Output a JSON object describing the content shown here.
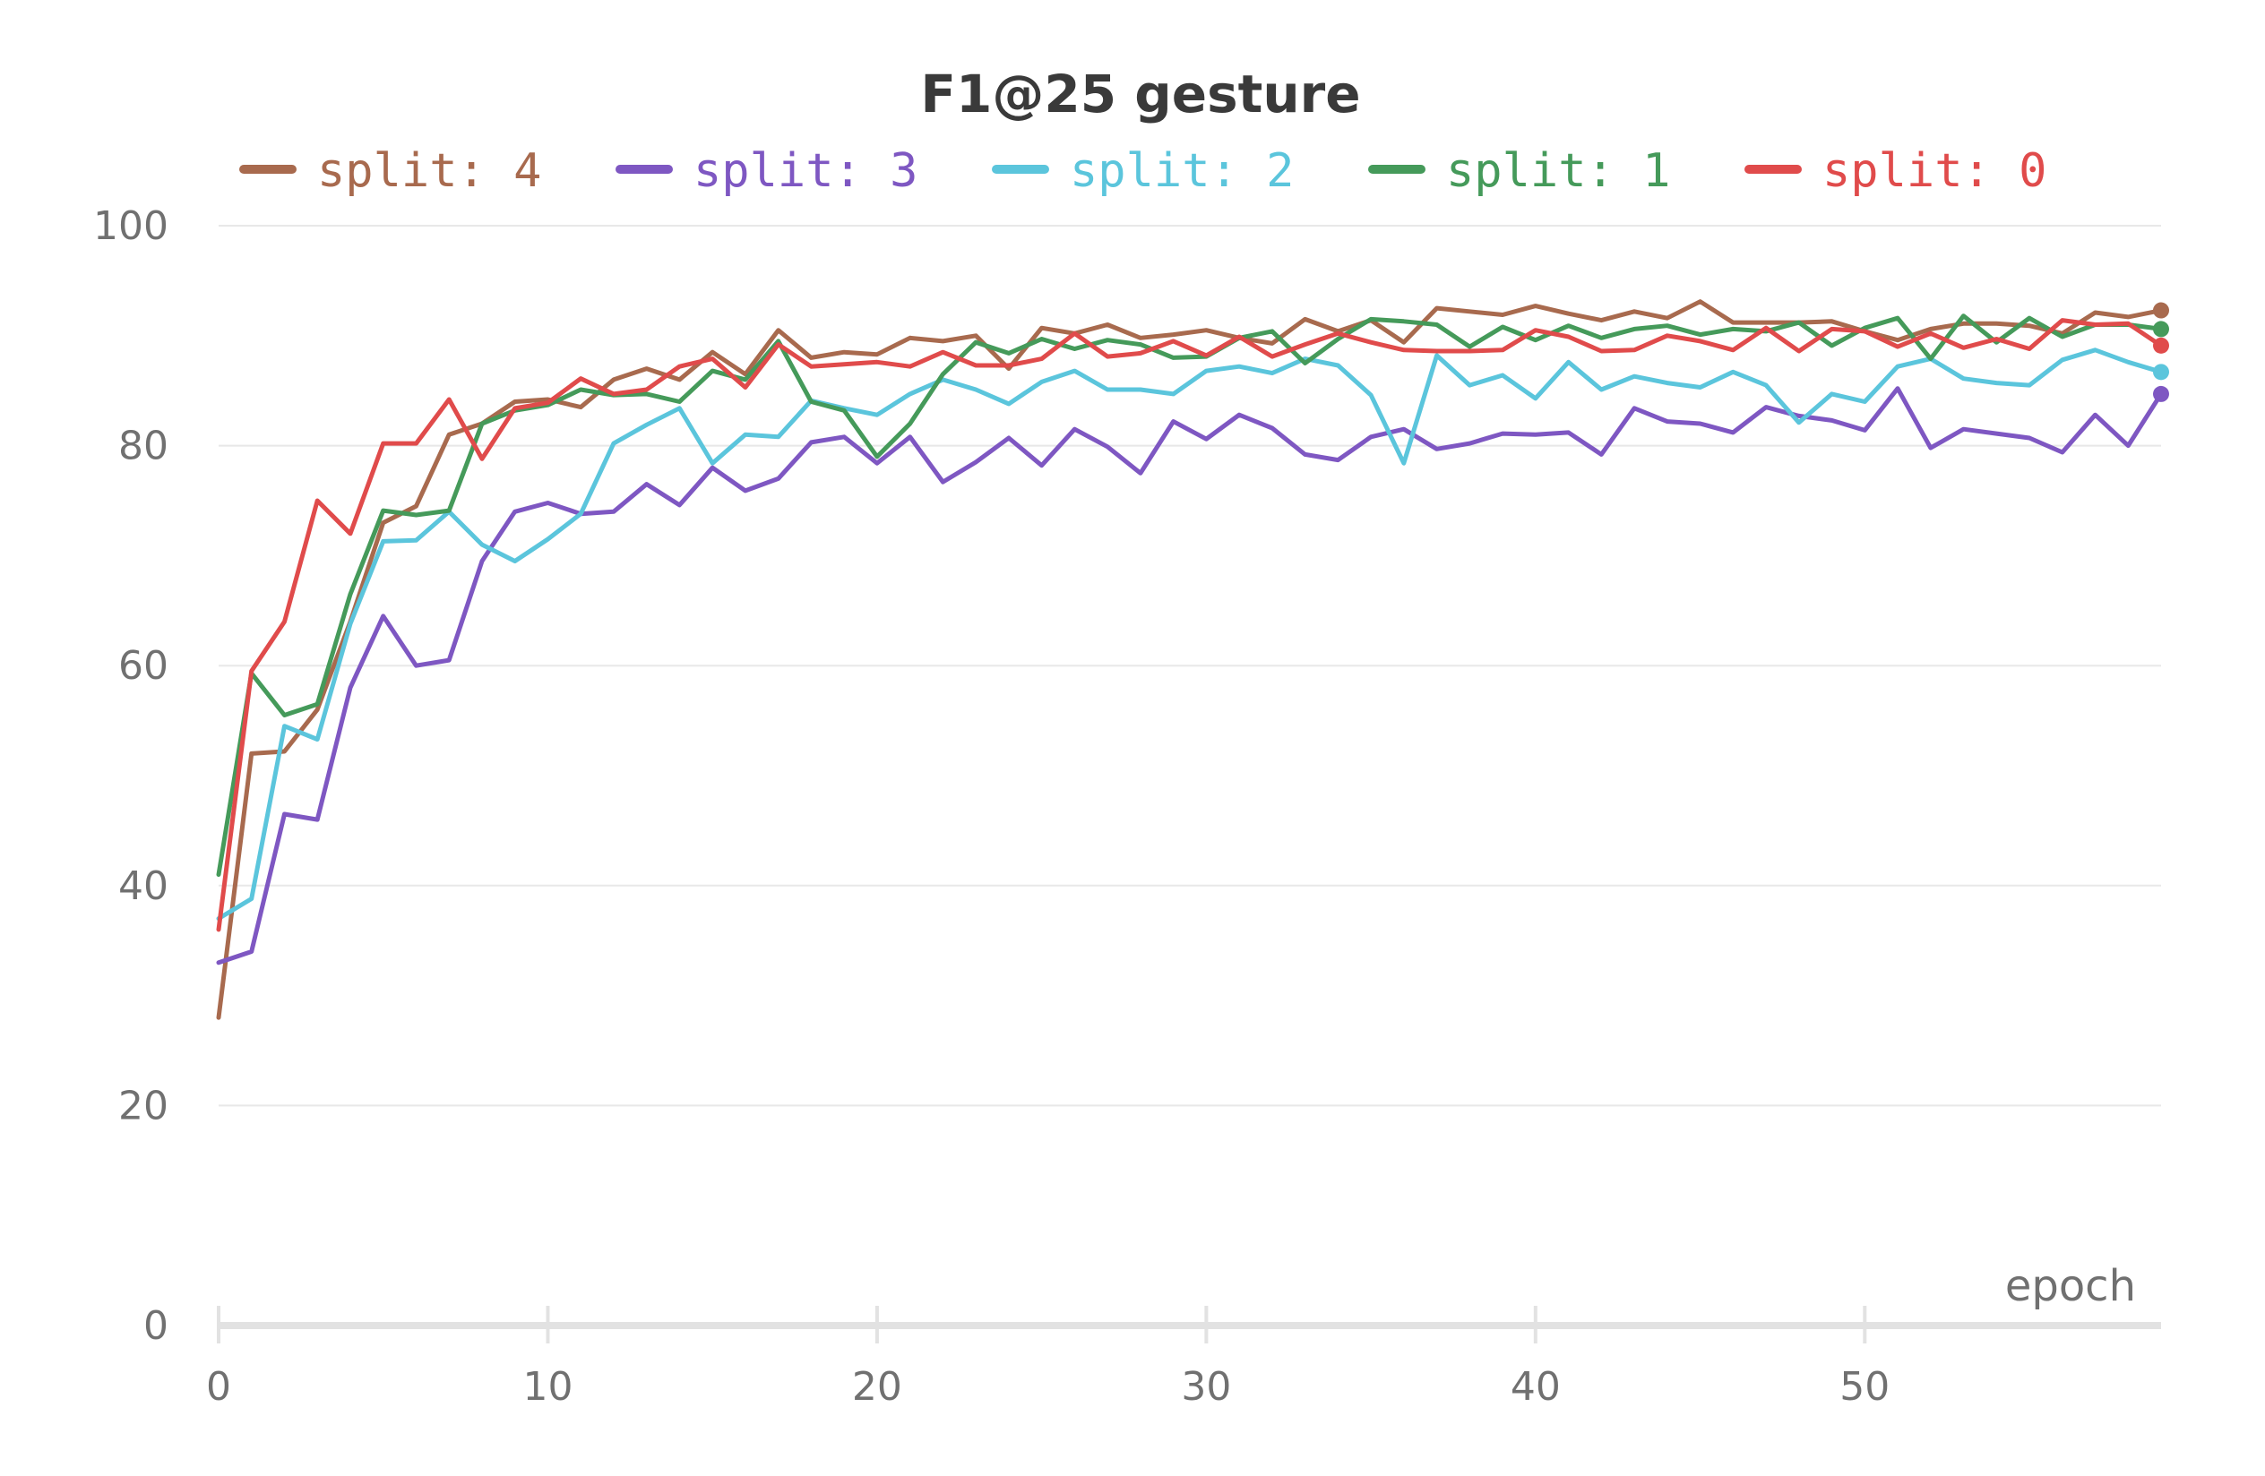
{
  "chart_data": {
    "type": "line",
    "title": "F1@25 gesture",
    "xlabel": "epoch",
    "ylabel": "",
    "xlim": [
      0,
      59
    ],
    "ylim": [
      0,
      100
    ],
    "xticks": [
      0,
      10,
      20,
      30,
      40,
      50
    ],
    "yticks": [
      0,
      20,
      40,
      60,
      80,
      100
    ],
    "grid": true,
    "legend_position": "top",
    "x": [
      0,
      1,
      2,
      3,
      4,
      5,
      6,
      7,
      8,
      9,
      10,
      11,
      12,
      13,
      14,
      15,
      16,
      17,
      18,
      19,
      20,
      21,
      22,
      23,
      24,
      25,
      26,
      27,
      28,
      29,
      30,
      31,
      32,
      33,
      34,
      35,
      36,
      37,
      38,
      39,
      40,
      41,
      42,
      43,
      44,
      45,
      46,
      47,
      48,
      49,
      50,
      51,
      52,
      53,
      54,
      55,
      56,
      57,
      58,
      59
    ],
    "series": [
      {
        "name": "split: 4",
        "color": "#a86a4e",
        "values": [
          28.0,
          52.0,
          52.2,
          56.0,
          64.0,
          73.0,
          74.5,
          81.0,
          82.0,
          84.0,
          84.2,
          83.5,
          86.0,
          87.0,
          86.0,
          88.5,
          86.5,
          90.5,
          88.0,
          88.5,
          88.3,
          89.8,
          89.5,
          90.0,
          87.0,
          90.7,
          90.2,
          91.0,
          89.8,
          90.1,
          90.5,
          89.8,
          89.3,
          91.5,
          90.4,
          91.4,
          89.4,
          92.5,
          92.2,
          91.9,
          92.7,
          92.0,
          91.4,
          92.2,
          91.6,
          93.1,
          91.2,
          91.2,
          91.2,
          91.3,
          90.4,
          89.6,
          90.6,
          91.1,
          91.1,
          90.9,
          90.2,
          92.1,
          91.7,
          92.3
        ]
      },
      {
        "name": "split: 3",
        "color": "#7e57c2",
        "values": [
          33.0,
          34.0,
          46.5,
          46.0,
          58.0,
          64.5,
          60.0,
          60.5,
          69.5,
          74.0,
          74.8,
          73.8,
          74.0,
          76.5,
          74.6,
          78.0,
          75.9,
          77.0,
          80.3,
          80.8,
          78.4,
          80.8,
          76.7,
          78.5,
          80.7,
          78.2,
          81.5,
          79.9,
          77.5,
          82.2,
          80.6,
          82.8,
          81.6,
          79.2,
          78.7,
          80.8,
          81.5,
          79.7,
          80.2,
          81.1,
          81.0,
          81.2,
          79.2,
          83.4,
          82.2,
          82.0,
          81.2,
          83.5,
          82.7,
          82.3,
          81.4,
          85.2,
          79.8,
          81.5,
          81.1,
          80.7,
          79.4,
          82.8,
          80.0,
          84.7
        ]
      },
      {
        "name": "split: 2",
        "color": "#5bc5dc",
        "values": [
          37.0,
          38.8,
          54.5,
          53.3,
          63.8,
          71.3,
          71.4,
          74.0,
          71.0,
          69.5,
          71.5,
          73.8,
          80.2,
          81.9,
          83.4,
          78.4,
          81.0,
          80.8,
          84.1,
          83.4,
          82.8,
          84.7,
          86.0,
          85.1,
          83.8,
          85.8,
          86.8,
          85.1,
          85.1,
          84.7,
          86.8,
          87.2,
          86.6,
          87.9,
          87.3,
          84.6,
          78.4,
          88.2,
          85.5,
          86.4,
          84.3,
          87.6,
          85.1,
          86.3,
          85.7,
          85.3,
          86.7,
          85.5,
          82.1,
          84.7,
          84.0,
          87.2,
          87.9,
          86.1,
          85.7,
          85.5,
          87.8,
          88.7,
          87.6,
          86.7
        ]
      },
      {
        "name": "split: 1",
        "color": "#459a5a",
        "values": [
          41.0,
          59.3,
          55.5,
          56.5,
          66.5,
          74.1,
          73.7,
          74.1,
          82.0,
          83.2,
          83.7,
          85.1,
          84.6,
          84.7,
          84.0,
          86.8,
          86.0,
          89.5,
          84.0,
          83.2,
          79.0,
          82.0,
          86.5,
          89.4,
          88.4,
          89.7,
          88.8,
          89.6,
          89.2,
          88.0,
          88.1,
          89.8,
          90.4,
          87.5,
          89.7,
          91.5,
          91.3,
          91.0,
          89.0,
          90.8,
          89.6,
          90.9,
          89.8,
          90.6,
          90.9,
          90.1,
          90.6,
          90.4,
          91.2,
          89.1,
          90.7,
          91.6,
          87.9,
          91.8,
          89.4,
          91.6,
          89.9,
          91.0,
          91.0,
          90.6
        ]
      },
      {
        "name": "split: 0",
        "color": "#e04b4b",
        "values": [
          36.0,
          59.5,
          64.0,
          75.0,
          72.0,
          80.2,
          80.2,
          84.2,
          78.8,
          83.4,
          83.9,
          86.1,
          84.7,
          85.1,
          87.2,
          87.9,
          85.3,
          89.2,
          87.2,
          87.4,
          87.6,
          87.2,
          88.5,
          87.3,
          87.3,
          87.9,
          90.2,
          88.1,
          88.4,
          89.5,
          88.2,
          89.9,
          88.1,
          89.2,
          90.2,
          89.4,
          88.7,
          88.6,
          88.6,
          88.7,
          90.5,
          89.9,
          88.6,
          88.7,
          90.0,
          89.5,
          88.7,
          90.7,
          88.6,
          90.6,
          90.4,
          89.0,
          90.2,
          88.9,
          89.7,
          88.8,
          91.4,
          91.0,
          91.1,
          89.1
        ]
      }
    ]
  }
}
